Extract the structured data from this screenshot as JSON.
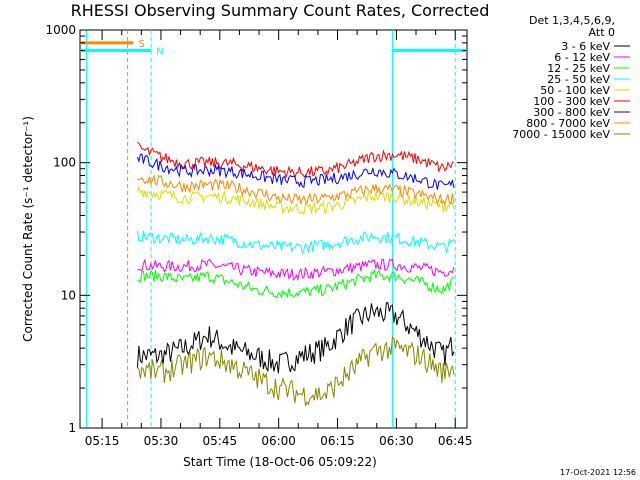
{
  "chart_data": {
    "type": "line",
    "title": "RHESSI Observing Summary Count Rates, Corrected",
    "xlabel": "Start Time (18-Oct-06 05:09:22)",
    "ylabel": "Corrected Count Rate (s⁻¹ detector⁻¹)",
    "yscale": "log",
    "ylim": [
      1,
      1000
    ],
    "xlim": [
      "05:09:22",
      "06:48:00"
    ],
    "y_ticks": [
      "1",
      "10",
      "100",
      "1000"
    ],
    "x_ticks": [
      "05:15",
      "05:30",
      "05:45",
      "06:00",
      "06:15",
      "06:30",
      "06:45"
    ],
    "legend_header": [
      "Det 1,3,4,5,6,9,",
      "Att 0"
    ],
    "legend_position": "right",
    "series": [
      {
        "name": "3 - 6 keV",
        "color": "#000000",
        "x": [
          "05:24",
          "05:30",
          "05:36",
          "05:42",
          "05:48",
          "05:54",
          "06:00",
          "06:06",
          "06:12",
          "06:18",
          "06:24",
          "06:30",
          "06:36",
          "06:42",
          "06:45"
        ],
        "values": [
          3.5,
          3.5,
          4,
          5,
          4,
          3.5,
          3,
          3.5,
          4,
          6,
          7.5,
          7,
          5,
          3.5,
          4.5
        ]
      },
      {
        "name": "6 - 12 keV",
        "color": "#ff00ff",
        "x": [
          "05:24",
          "05:30",
          "05:36",
          "05:42",
          "05:48",
          "05:54",
          "06:00",
          "06:06",
          "06:12",
          "06:18",
          "06:24",
          "06:30",
          "06:36",
          "06:42",
          "06:45"
        ],
        "values": [
          17,
          16.5,
          16.5,
          17,
          16,
          15,
          14.5,
          14.5,
          15,
          16,
          17,
          17,
          16,
          15,
          16
        ]
      },
      {
        "name": "12 - 25 keV",
        "color": "#00ff00",
        "x": [
          "05:24",
          "05:30",
          "05:36",
          "05:42",
          "05:48",
          "05:54",
          "06:00",
          "06:06",
          "06:12",
          "06:18",
          "06:24",
          "06:30",
          "06:36",
          "06:42",
          "06:45"
        ],
        "values": [
          14,
          14,
          13,
          14,
          12.5,
          11,
          10.5,
          10.5,
          11,
          12.5,
          14,
          14,
          12.5,
          11,
          13
        ]
      },
      {
        "name": "25 - 50 keV",
        "color": "#00ffff",
        "x": [
          "05:24",
          "05:30",
          "05:36",
          "05:42",
          "05:48",
          "05:54",
          "06:00",
          "06:06",
          "06:12",
          "06:18",
          "06:24",
          "06:30",
          "06:36",
          "06:42",
          "06:45"
        ],
        "values": [
          28,
          27,
          26,
          27,
          26,
          24,
          23,
          23,
          24,
          26,
          28,
          27,
          25,
          23,
          25
        ]
      },
      {
        "name": "50 - 100 keV",
        "color": "#dddd00",
        "x": [
          "05:24",
          "05:30",
          "05:36",
          "05:42",
          "05:48",
          "05:54",
          "06:00",
          "06:06",
          "06:12",
          "06:18",
          "06:24",
          "06:30",
          "06:36",
          "06:42",
          "06:45"
        ],
        "values": [
          62,
          58,
          54,
          56,
          54,
          50,
          46,
          45,
          46,
          50,
          56,
          55,
          50,
          47,
          50
        ]
      },
      {
        "name": "100 - 300 keV",
        "color": "#ff0000",
        "x": [
          "05:24",
          "05:30",
          "05:36",
          "05:42",
          "05:48",
          "05:54",
          "06:00",
          "06:06",
          "06:12",
          "06:18",
          "06:24",
          "06:30",
          "06:36",
          "06:42",
          "06:45"
        ],
        "values": [
          130,
          110,
          98,
          100,
          98,
          92,
          86,
          84,
          86,
          96,
          112,
          115,
          105,
          90,
          100
        ]
      },
      {
        "name": "300 - 800 keV",
        "color": "#0000ff",
        "x": [
          "05:24",
          "05:30",
          "05:36",
          "05:42",
          "05:48",
          "05:54",
          "06:00",
          "06:06",
          "06:12",
          "06:18",
          "06:24",
          "06:30",
          "06:36",
          "06:42",
          "06:45"
        ],
        "values": [
          108,
          95,
          86,
          88,
          86,
          80,
          74,
          72,
          74,
          80,
          88,
          82,
          75,
          65,
          70
        ]
      },
      {
        "name": "800 - 7000 keV",
        "color": "#ff8800",
        "x": [
          "05:24",
          "05:30",
          "05:36",
          "05:42",
          "05:48",
          "05:54",
          "06:00",
          "06:06",
          "06:12",
          "06:18",
          "06:24",
          "06:30",
          "06:36",
          "06:42",
          "06:45"
        ],
        "values": [
          78,
          72,
          66,
          68,
          66,
          60,
          54,
          52,
          54,
          58,
          64,
          62,
          57,
          52,
          55
        ]
      },
      {
        "name": "7000 - 15000 keV",
        "color": "#888800",
        "x": [
          "05:24",
          "05:30",
          "05:36",
          "05:42",
          "05:48",
          "05:54",
          "06:00",
          "06:06",
          "06:12",
          "06:18",
          "06:24",
          "06:30",
          "06:36",
          "06:42",
          "06:45"
        ],
        "values": [
          2.8,
          2.6,
          3,
          3.5,
          3,
          2.4,
          2,
          1.8,
          1.8,
          2.6,
          3.8,
          4,
          3.5,
          2.6,
          3
        ]
      }
    ],
    "annotations": [
      {
        "label": "S",
        "color": "#ff8800",
        "x_start": "05:09:22",
        "x_end": "05:23:00",
        "y": 800
      },
      {
        "label": "N",
        "color": "#00ffff",
        "x_start": "05:09:22",
        "x_end": "05:27:30",
        "y": 700
      },
      {
        "label": "",
        "color": "#00ffff",
        "x_start": "06:29:00",
        "x_end": "06:48:00",
        "y": 700
      }
    ],
    "vertical_lines": [
      {
        "x": "05:11:00",
        "color": "#00ffff",
        "style": "solid"
      },
      {
        "x": "05:21:30",
        "color": "#ff8800",
        "style": "dashed"
      },
      {
        "x": "05:27:30",
        "color": "#00ffff",
        "style": "dashed"
      },
      {
        "x": "06:29:00",
        "color": "#00ffff",
        "style": "solid"
      },
      {
        "x": "06:45:00",
        "color": "#00ffff",
        "style": "dashed"
      }
    ],
    "timestamp": "17-Oct-2021 12:56"
  }
}
